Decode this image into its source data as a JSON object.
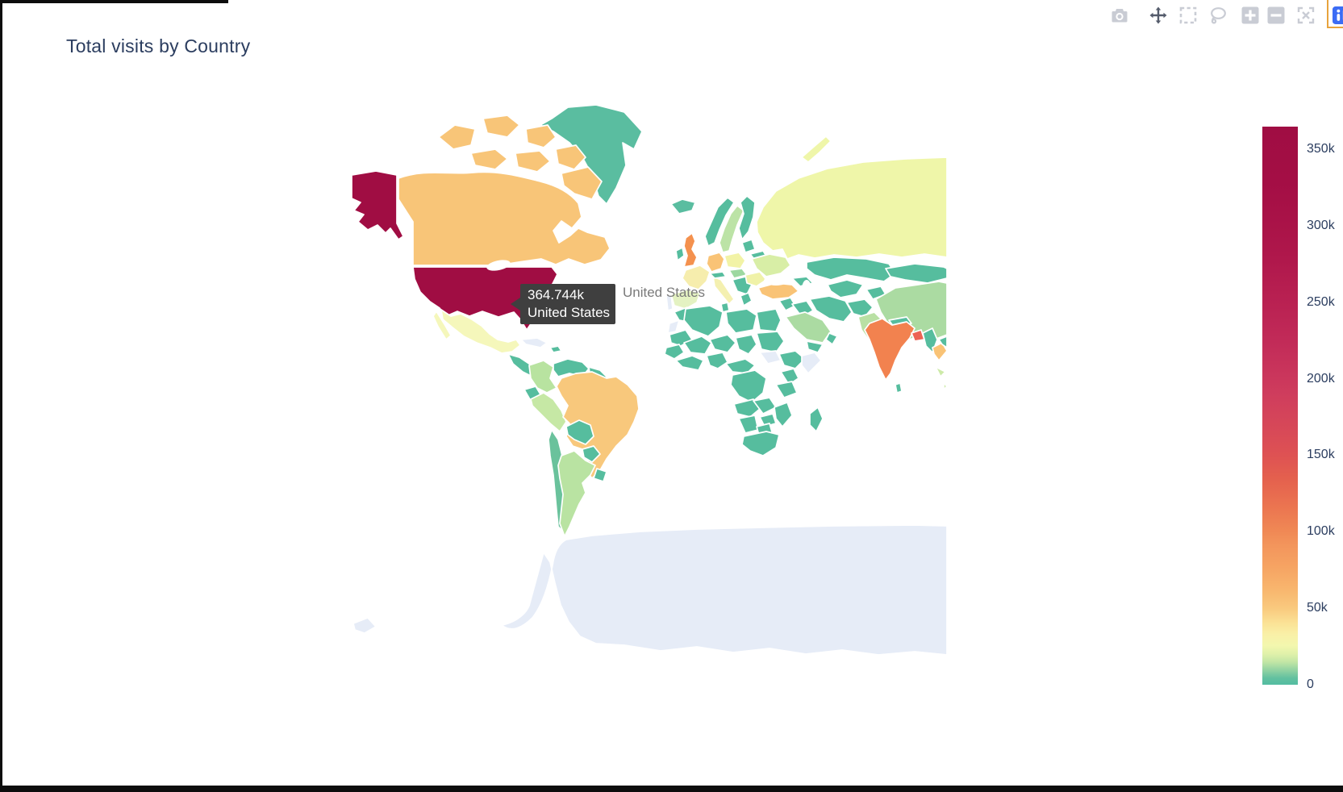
{
  "title": "Total visits by Country",
  "modebar": {
    "inactive_color": "#c9ccd4",
    "active_color": "#545b6b",
    "logo_color": "#3b6cf5",
    "highlight_color": "#e8a33d",
    "icons": [
      {
        "name": "camera",
        "title": "Download plot as a png",
        "active": false
      },
      {
        "name": "pan",
        "title": "Pan",
        "active": true
      },
      {
        "name": "box-select",
        "title": "Box Select",
        "active": false
      },
      {
        "name": "lasso",
        "title": "Lasso Select",
        "active": false
      },
      {
        "name": "zoom-in",
        "title": "Zoom in",
        "active": false
      },
      {
        "name": "zoom-out",
        "title": "Zoom out",
        "active": false
      },
      {
        "name": "reset",
        "title": "Reset view",
        "active": false
      },
      {
        "name": "plotly-logo",
        "title": "Produced with Plotly",
        "active": false
      }
    ]
  },
  "tooltip": {
    "value": "364.744k",
    "country": "United States",
    "secondary_label": "United States",
    "bg": "#3f3f3f"
  },
  "chart_data": {
    "type": "choropleth",
    "title": "Total visits by Country",
    "hovered_point": {
      "country": "United States",
      "value": 364744,
      "formatted": "364.744k"
    },
    "map_background": "#ffffff",
    "border_color": "#ffffff",
    "no_data_color": "#e6ecf7",
    "colorbar": {
      "min": 0,
      "max": 364744,
      "ticks": [
        {
          "label": "0",
          "value": 0
        },
        {
          "label": "50k",
          "value": 50000
        },
        {
          "label": "100k",
          "value": 100000
        },
        {
          "label": "150k",
          "value": 150000
        },
        {
          "label": "200k",
          "value": 200000
        },
        {
          "label": "250k",
          "value": 250000
        },
        {
          "label": "300k",
          "value": 300000
        },
        {
          "label": "350k",
          "value": 350000
        }
      ],
      "colorscale": [
        [
          0,
          "#53bca1"
        ],
        [
          0.012,
          "#62c1a0"
        ],
        [
          0.025,
          "#8ed1a2"
        ],
        [
          0.04,
          "#c0e5a5"
        ],
        [
          0.055,
          "#e0f1aa"
        ],
        [
          0.07,
          "#f3f7ae"
        ],
        [
          0.09,
          "#f9f0a7"
        ],
        [
          0.11,
          "#fbe296"
        ],
        [
          0.137,
          "#f9c97e"
        ],
        [
          0.17,
          "#f8b66e"
        ],
        [
          0.21,
          "#f6a463"
        ],
        [
          0.25,
          "#f3955c"
        ],
        [
          0.274,
          "#f08955"
        ],
        [
          0.32,
          "#eb7450"
        ],
        [
          0.37,
          "#e4604e"
        ],
        [
          0.411,
          "#de5253"
        ],
        [
          0.46,
          "#d74858"
        ],
        [
          0.52,
          "#cf3d5d"
        ],
        [
          0.548,
          "#cb375c"
        ],
        [
          0.62,
          "#c12a58"
        ],
        [
          0.685,
          "#b92152"
        ],
        [
          0.76,
          "#b0184c"
        ],
        [
          0.822,
          "#aa1348"
        ],
        [
          0.9,
          "#a40e45"
        ],
        [
          1,
          "#a00d43"
        ]
      ]
    },
    "countries": {
      "united-states": "#a00d43",
      "canada": "#f8c578",
      "greenland": "#5abda0",
      "mexico": "#f5f7bb",
      "cuba": "#e6ecf7",
      "hispaniola": "#56bd9e",
      "central-america": "#56bd9e",
      "colombia": "#b8e3a0",
      "venezuela": "#56bd9e",
      "guyana": "#56bd9e",
      "ecuador": "#56bd9e",
      "peru": "#c6e8a5",
      "brazil": "#f8c87c",
      "bolivia": "#56bd9e",
      "paraguay": "#56bd9e",
      "chile": "#6ac29c",
      "argentina": "#b9e3a2",
      "uruguay": "#56bd9e",
      "iceland": "#5abda0",
      "united-kingdom": "#f4914e",
      "ireland": "#56bd9e",
      "norway": "#56bd9e",
      "sweden": "#bce3a6",
      "finland": "#56bd9e",
      "denmark": "#f3f0ae",
      "baltics": "#56bd9e",
      "belarus": "#56bd9e",
      "poland": "#f2f3a6",
      "germany": "#f9c376",
      "france": "#f6edad",
      "spain": "#e4f2c2",
      "portugal": "#e6ecf7",
      "italy": "#f4f0b0",
      "alpine": "#56bd9e",
      "czech-hungary": "#9dd8a0",
      "balkans": "#56bd9e",
      "greece": "#56bd9e",
      "romania": "#f0f2a8",
      "ukraine": "#d8eea6",
      "russia": "#eff6a9",
      "turkey": "#f9c376",
      "caucasus": "#56bd9e",
      "levant": "#56bd9e",
      "iraq": "#56bd9e",
      "saudi-arabia": "#abdba2",
      "yemen": "#56bd9e",
      "oman": "#56bd9e",
      "iran": "#56bd9e",
      "afghanistan": "#56bd9e",
      "pakistan": "#b9e0a4",
      "central-asia": "#56bd9e",
      "kazakhstan": "#56bd9e",
      "mongolia": "#56bd9e",
      "china": "#abdba2",
      "nepal": "#56bd9e",
      "india": "#f2824f",
      "sri-lanka": "#56bd9e",
      "bangladesh": "#ec6353",
      "myanmar": "#56bd9e",
      "thailand": "#f9c376",
      "vietnam": "#56bd9e",
      "indonesia": "#cdeaa8",
      "morocco": "#56bd9e",
      "western-sahara": "#e6ecf7",
      "algeria": "#56bd9e",
      "tunisia": "#56bd9e",
      "libya": "#56bd9e",
      "egypt": "#56bd9e",
      "mauritania": "#56bd9e",
      "mali": "#56bd9e",
      "niger": "#56bd9e",
      "chad": "#56bd9e",
      "sudan": "#56bd9e",
      "south-sudan": "#e6ecf7",
      "ethiopia": "#56bd9e",
      "somalia": "#e6ecf7",
      "west-africa": "#56bd9e",
      "nigeria": "#56bd9e",
      "central-africa": "#56bd9e",
      "drc": "#56bd9e",
      "kenya": "#56bd9e",
      "tanzania": "#56bd9e",
      "angola": "#56bd9e",
      "zambia": "#56bd9e",
      "mozambique": "#56bd9e",
      "zimbabwe": "#56bd9e",
      "namibia": "#56bd9e",
      "botswana": "#56bd9e",
      "south-africa": "#56bd9e",
      "madagascar": "#56bd9e",
      "antarctica": "#e6ecf7"
    }
  }
}
